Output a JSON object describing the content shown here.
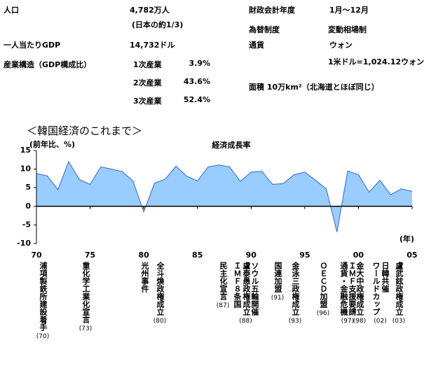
{
  "info": {
    "left": [
      {
        "label": "人口",
        "values": [
          "4,782万人",
          "(日本の約1/3)"
        ]
      },
      {
        "label": "一人当たりGDP",
        "values": [
          "14,732ドル"
        ]
      },
      {
        "label": "産業構造（GDP構成比）",
        "rows": [
          [
            "1次産業",
            "3.9%"
          ],
          [
            "2次産業",
            "43.6%"
          ],
          [
            "3次産業",
            "52.4%"
          ]
        ]
      }
    ],
    "right": [
      {
        "label": "財政会計年度",
        "values": [
          "1月～12月"
        ]
      },
      {
        "label": "為替制度",
        "values": [
          "変動相場制"
        ]
      },
      {
        "label": "通貨",
        "values": [
          "ウォン",
          "1米ドル=1,024.12ウォン"
        ]
      },
      {
        "label": "面積 10万km²（北海道とほぼ同じ）"
      }
    ]
  },
  "section_title": "＜韓国経済のこれまで＞",
  "chart_data": {
    "type": "area",
    "title": "経済成長率",
    "y_label": "(前年比、%)",
    "x_label": "(年)",
    "x": [
      1970,
      1971,
      1972,
      1973,
      1974,
      1975,
      1976,
      1977,
      1978,
      1979,
      1980,
      1981,
      1982,
      1983,
      1984,
      1985,
      1986,
      1987,
      1988,
      1989,
      1990,
      1991,
      1992,
      1993,
      1994,
      1995,
      1996,
      1997,
      1998,
      1999,
      2000,
      2001,
      2002,
      2003,
      2004,
      2005
    ],
    "series": [
      {
        "name": "経済成長率",
        "color": "#99ccff",
        "line_color": "#3366cc",
        "values": [
          8.8,
          8.2,
          4.5,
          12.0,
          7.2,
          5.9,
          10.6,
          10.0,
          9.3,
          6.8,
          -1.5,
          6.2,
          7.3,
          10.8,
          8.1,
          6.8,
          10.6,
          11.1,
          10.6,
          6.7,
          9.2,
          9.4,
          5.9,
          6.1,
          8.5,
          9.2,
          7.0,
          4.7,
          -6.9,
          9.5,
          8.5,
          3.8,
          7.0,
          3.1,
          4.7,
          4.0
        ]
      }
    ],
    "xlim": [
      1970,
      2005
    ],
    "xticks": [
      {
        "value": 1970,
        "label": "70"
      },
      {
        "value": 1975,
        "label": "75"
      },
      {
        "value": 1980,
        "label": "80"
      },
      {
        "value": 1985,
        "label": "85"
      },
      {
        "value": 1990,
        "label": "90"
      },
      {
        "value": 1995,
        "label": "95"
      },
      {
        "value": 2000,
        "label": "00"
      },
      {
        "value": 2005,
        "label": "05"
      }
    ],
    "ylim": [
      -10,
      15
    ],
    "yticks": [
      15,
      10,
      5,
      0,
      -5,
      -10
    ]
  },
  "events": [
    {
      "lines": [
        "浦項製鉄所建設着手"
      ],
      "year": "(70)"
    },
    {
      "lines": [
        "重化学工業化宣言"
      ],
      "year": "(73)"
    },
    {
      "lines": [
        "光州事件"
      ]
    },
    {
      "lines": [
        "全斗煥政権成立"
      ],
      "year": "(80)"
    },
    {
      "lines": [
        "民主化宣言"
      ],
      "year": "(87)"
    },
    {
      "lines": [
        "ＩＭＦ８条国",
        "盧泰愚政権成立",
        "ソウル五輪開催"
      ],
      "year": "(88)"
    },
    {
      "lines": [
        "国連加盟"
      ],
      "year": "(91)"
    },
    {
      "lines": [
        "金泳三政権成立"
      ],
      "year": "(93)"
    },
    {
      "lines": [
        "ＯＥＣＤ加盟"
      ],
      "year": "(96)"
    },
    {
      "lines": [
        "通貨・金融危機",
        "ＩＭＦ支援要請"
      ],
      "year": "(97)"
    },
    {
      "lines": [
        "金大中政権成立"
      ],
      "year": "(98)"
    },
    {
      "lines": [
        "ワールドカップ",
        "日韓共催"
      ],
      "year": "(02)"
    },
    {
      "lines": [
        "盧武鉉政権成立"
      ],
      "year": "(03)"
    }
  ]
}
